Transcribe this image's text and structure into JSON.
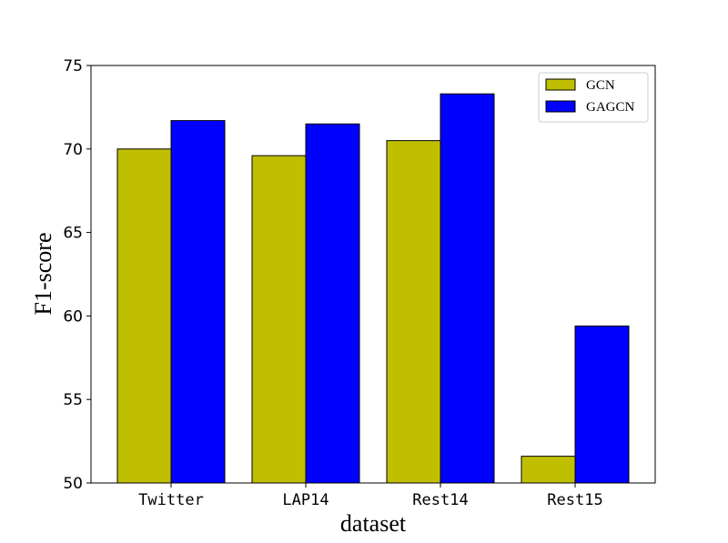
{
  "chart_data": {
    "type": "bar",
    "categories": [
      "Twitter",
      "LAP14",
      "Rest14",
      "Rest15"
    ],
    "series": [
      {
        "name": "GCN",
        "values": [
          70.0,
          69.6,
          70.5,
          51.6
        ],
        "color": "#bfbf00"
      },
      {
        "name": "GAGCN",
        "values": [
          71.7,
          71.5,
          73.3,
          59.4
        ],
        "color": "#0000ff"
      }
    ],
    "xlabel": "dataset",
    "ylabel": "F1-score",
    "ylim": [
      50,
      75
    ],
    "yticks": [
      50,
      55,
      60,
      65,
      70,
      75
    ],
    "grid": false,
    "legend": "top-right"
  }
}
